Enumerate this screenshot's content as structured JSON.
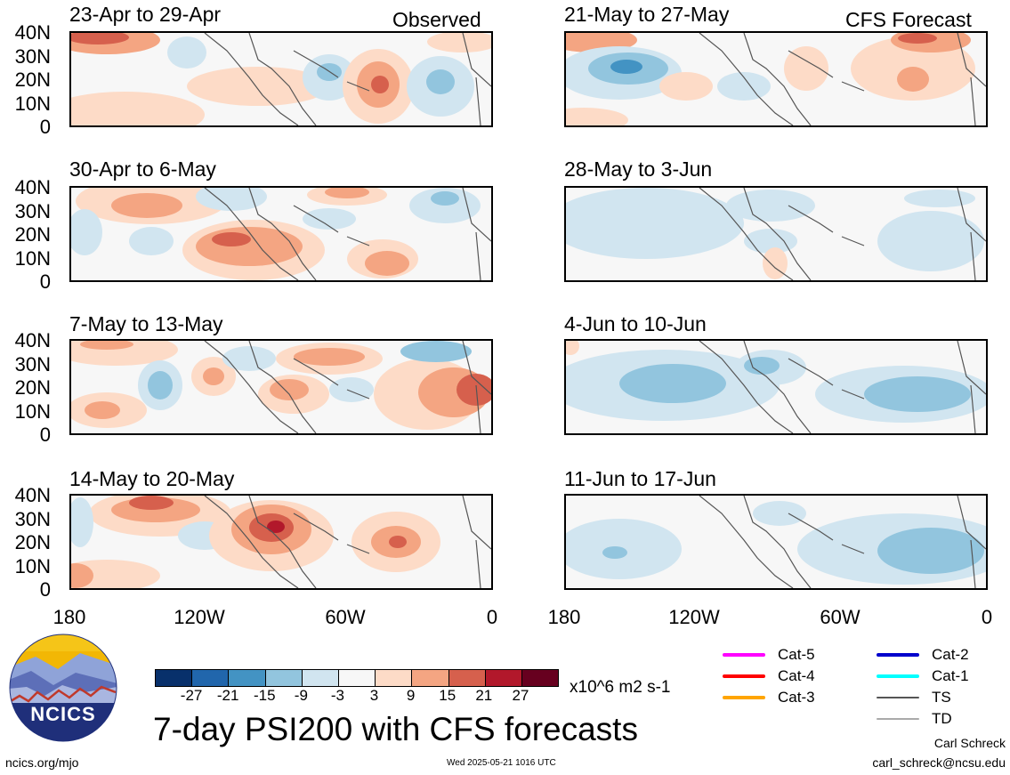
{
  "header": {
    "observed_label": "Observed",
    "forecast_label": "CFS Forecast"
  },
  "panels": {
    "left": [
      {
        "title": "23-Apr to 29-Apr"
      },
      {
        "title": "30-Apr to 6-May"
      },
      {
        "title": "7-May to 13-May"
      },
      {
        "title": "14-May to 20-May"
      }
    ],
    "right": [
      {
        "title": "21-May to 27-May"
      },
      {
        "title": "28-May to 3-Jun"
      },
      {
        "title": "4-Jun to 10-Jun"
      },
      {
        "title": "11-Jun to 17-Jun"
      }
    ]
  },
  "axes": {
    "y_ticks": [
      "40N",
      "30N",
      "20N",
      "10N",
      "0"
    ],
    "x_ticks": [
      "180",
      "120W",
      "60W",
      "0"
    ]
  },
  "colorbar": {
    "labels": [
      "-27",
      "-21",
      "-15",
      "-9",
      "-3",
      "3",
      "9",
      "15",
      "21",
      "27"
    ],
    "colors": [
      "#08306b",
      "#2166ac",
      "#4393c3",
      "#92c5de",
      "#d1e5f0",
      "#f7f7f7",
      "#fddbc7",
      "#f4a582",
      "#d6604d",
      "#b2182b",
      "#67001f"
    ],
    "units": "x10^6 m2 s-1"
  },
  "storm_legend": [
    {
      "label": "Cat-5",
      "color": "#ff00ff"
    },
    {
      "label": "Cat-4",
      "color": "#ff0000"
    },
    {
      "label": "Cat-3",
      "color": "#ffa500"
    },
    {
      "label": "Cat-2",
      "color": "#0000cc"
    },
    {
      "label": "Cat-1",
      "color": "#00ffff"
    },
    {
      "label": "TS",
      "color": "#555555"
    },
    {
      "label": "TD",
      "color": "#aaaaaa"
    }
  ],
  "logo": {
    "text": "NCICS"
  },
  "main_title": "7-day PSI200 with CFS forecasts",
  "footer": {
    "url": "ncics.org/mjo",
    "timestamp": "Wed 2025-05-21 1016 UTC",
    "author": "Carl Schreck",
    "email": "carl_schreck@ncsu.edu"
  }
}
